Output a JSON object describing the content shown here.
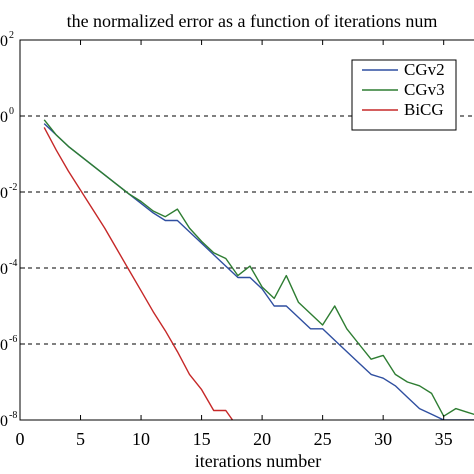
{
  "chart_data": {
    "type": "line",
    "title": "the normalized error as a function of iterations num",
    "xlabel": "iterations number",
    "ylabel": "",
    "xlim": [
      0,
      38
    ],
    "ylim": [
      -8,
      2
    ],
    "y_scale": "log10 (tick labels show exponents)",
    "grid": true,
    "grid_style": "dashed, horizontal only",
    "legend_position": "top-right",
    "x_ticks": [
      "0",
      "5",
      "10",
      "15",
      "20",
      "25",
      "30",
      "35"
    ],
    "x_tick_values": [
      0,
      5,
      10,
      15,
      20,
      25,
      30,
      35
    ],
    "y_ticks": [
      "-8",
      "-6",
      "-4",
      "-2",
      "0",
      "2"
    ],
    "y_tick_values": [
      -8,
      -6,
      -4,
      -2,
      0,
      2
    ],
    "series": [
      {
        "name": "CGv2",
        "color": "#2f4fa0",
        "x": [
          2,
          3,
          4,
          5,
          6,
          7,
          8,
          9,
          10,
          11,
          12,
          13,
          14,
          15,
          16,
          17,
          18,
          19,
          20,
          21,
          22,
          23,
          24,
          25,
          26,
          27,
          28,
          29,
          30,
          31,
          32,
          33,
          34,
          35,
          36,
          37,
          38
        ],
        "y": [
          -0.2,
          -0.5,
          -0.8,
          -1.05,
          -1.3,
          -1.55,
          -1.8,
          -2.05,
          -2.3,
          -2.55,
          -2.75,
          -2.75,
          -3.05,
          -3.35,
          -3.65,
          -3.95,
          -4.25,
          -4.25,
          -4.55,
          -5.0,
          -5.0,
          -5.3,
          -5.6,
          -5.6,
          -5.9,
          -6.2,
          -6.5,
          -6.8,
          -6.9,
          -7.1,
          -7.4,
          -7.7,
          -7.85,
          -8.0,
          -8.0,
          -8.0,
          -8.0
        ]
      },
      {
        "name": "CGv3",
        "color": "#2e7d32",
        "x": [
          2,
          3,
          4,
          5,
          6,
          7,
          8,
          9,
          10,
          11,
          12,
          13,
          14,
          15,
          16,
          17,
          18,
          19,
          20,
          21,
          22,
          23,
          24,
          25,
          26,
          27,
          28,
          29,
          30,
          31,
          32,
          33,
          34,
          35,
          36,
          37,
          38
        ],
        "y": [
          -0.1,
          -0.5,
          -0.8,
          -1.05,
          -1.3,
          -1.55,
          -1.8,
          -2.05,
          -2.25,
          -2.5,
          -2.65,
          -2.45,
          -2.95,
          -3.3,
          -3.6,
          -3.75,
          -4.2,
          -3.95,
          -4.5,
          -4.8,
          -4.2,
          -4.9,
          -5.2,
          -5.5,
          -5.0,
          -5.6,
          -6.0,
          -6.4,
          -6.3,
          -6.8,
          -7.0,
          -7.1,
          -7.3,
          -7.9,
          -7.7,
          -7.8,
          -7.9
        ]
      },
      {
        "name": "BiCG",
        "color": "#c62828",
        "x": [
          2,
          3,
          4,
          5,
          6,
          7,
          8,
          9,
          10,
          11,
          12,
          13,
          14,
          15,
          16,
          17,
          18,
          19
        ],
        "y": [
          -0.3,
          -0.9,
          -1.45,
          -1.95,
          -2.45,
          -2.95,
          -3.5,
          -4.05,
          -4.6,
          -5.15,
          -5.65,
          -6.2,
          -6.8,
          -7.2,
          -7.75,
          -7.75,
          -8.2,
          -8.5
        ]
      }
    ]
  },
  "legend": [
    {
      "label": "CGv2",
      "color": "#2f4fa0"
    },
    {
      "label": "CGv3",
      "color": "#2e7d32"
    },
    {
      "label": "BiCG",
      "color": "#c62828"
    }
  ]
}
